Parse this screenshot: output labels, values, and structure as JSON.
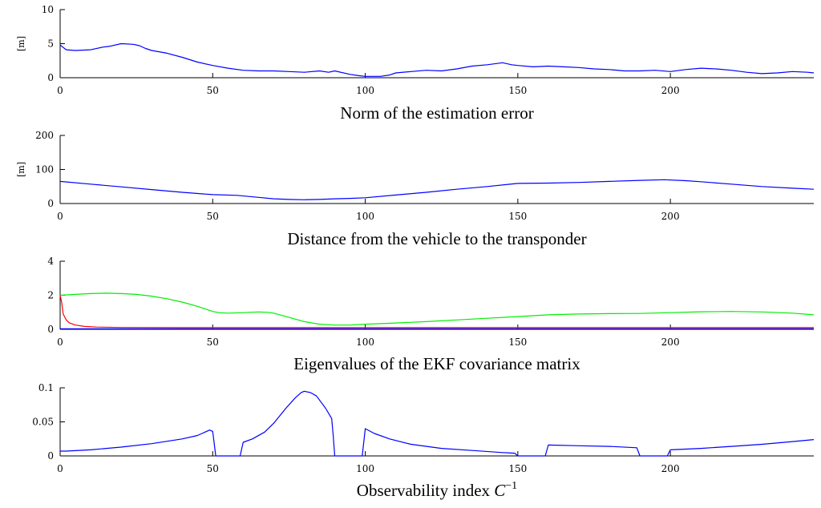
{
  "chart_data": [
    {
      "type": "line",
      "title": "Norm of the estimation error",
      "ylabel": "[m]",
      "xlim": [
        0,
        247
      ],
      "ylim": [
        0,
        10
      ],
      "xticks": [
        "0",
        "50",
        "100",
        "150",
        "200"
      ],
      "yticks": [
        "0",
        "5",
        "10"
      ],
      "series": [
        {
          "color": "#0000ff",
          "x": [
            0,
            2,
            5,
            10,
            14,
            16,
            20,
            24,
            26,
            28,
            30,
            35,
            40,
            45,
            50,
            55,
            60,
            65,
            70,
            75,
            80,
            85,
            88,
            90,
            95,
            98,
            100,
            102,
            105,
            108,
            110,
            115,
            120,
            125,
            130,
            135,
            140,
            145,
            148,
            150,
            155,
            160,
            165,
            170,
            175,
            180,
            185,
            190,
            195,
            200,
            205,
            210,
            215,
            220,
            225,
            230,
            235,
            240,
            245,
            247
          ],
          "y": [
            4.8,
            4.1,
            4.0,
            4.1,
            4.5,
            4.6,
            5.0,
            4.9,
            4.7,
            4.3,
            4.0,
            3.6,
            3.0,
            2.3,
            1.8,
            1.4,
            1.1,
            1.0,
            1.0,
            0.9,
            0.8,
            1.0,
            0.8,
            1.0,
            0.5,
            0.3,
            0.2,
            0.2,
            0.2,
            0.4,
            0.7,
            0.9,
            1.1,
            1.0,
            1.3,
            1.7,
            1.9,
            2.2,
            1.9,
            1.8,
            1.6,
            1.7,
            1.6,
            1.5,
            1.3,
            1.2,
            1.0,
            1.0,
            1.1,
            0.9,
            1.2,
            1.4,
            1.3,
            1.1,
            0.8,
            0.6,
            0.7,
            0.9,
            0.8,
            0.7
          ]
        }
      ]
    },
    {
      "type": "line",
      "title": "Distance from the vehicle to the transponder",
      "ylabel": "[m]",
      "xlim": [
        0,
        247
      ],
      "ylim": [
        0,
        200
      ],
      "xticks": [
        "0",
        "50",
        "100",
        "150",
        "200"
      ],
      "yticks": [
        "0",
        "100",
        "200"
      ],
      "series": [
        {
          "color": "#0000ff",
          "x": [
            0,
            10,
            20,
            30,
            40,
            50,
            58,
            65,
            70,
            75,
            80,
            85,
            90,
            95,
            100,
            110,
            120,
            130,
            140,
            150,
            160,
            170,
            180,
            190,
            198,
            205,
            210,
            220,
            230,
            240,
            247
          ],
          "y": [
            65,
            57,
            49,
            41,
            33,
            26,
            24,
            18,
            14,
            12,
            11,
            12,
            14,
            15,
            17,
            25,
            33,
            42,
            50,
            59,
            60,
            62,
            65,
            68,
            70,
            67,
            64,
            57,
            50,
            45,
            42
          ]
        }
      ]
    },
    {
      "type": "line",
      "title": "Eigenvalues of the EKF covariance matrix",
      "ylabel": "",
      "xlim": [
        0,
        247
      ],
      "ylim": [
        0,
        4
      ],
      "xticks": [
        "0",
        "50",
        "100",
        "150",
        "200"
      ],
      "yticks": [
        "0",
        "2",
        "4"
      ],
      "series": [
        {
          "color": "#00ee00",
          "x": [
            0,
            5,
            10,
            15,
            20,
            25,
            30,
            35,
            40,
            45,
            50,
            52,
            55,
            60,
            65,
            68,
            70,
            75,
            80,
            85,
            90,
            95,
            100,
            110,
            120,
            130,
            140,
            150,
            160,
            170,
            180,
            190,
            200,
            210,
            220,
            230,
            240,
            247
          ],
          "y": [
            2.0,
            2.05,
            2.1,
            2.12,
            2.1,
            2.05,
            1.95,
            1.8,
            1.6,
            1.35,
            1.05,
            0.98,
            0.95,
            0.98,
            1.02,
            1.0,
            0.95,
            0.7,
            0.45,
            0.3,
            0.25,
            0.25,
            0.3,
            0.37,
            0.45,
            0.55,
            0.65,
            0.75,
            0.85,
            0.9,
            0.92,
            0.93,
            0.98,
            1.03,
            1.05,
            1.02,
            0.95,
            0.85
          ]
        },
        {
          "color": "#ff0000",
          "x": [
            0,
            0.5,
            1,
            2,
            3,
            5,
            8,
            12,
            20,
            40,
            80,
            120,
            160,
            200,
            247
          ],
          "y": [
            2.0,
            1.6,
            0.9,
            0.55,
            0.38,
            0.25,
            0.17,
            0.13,
            0.11,
            0.1,
            0.1,
            0.1,
            0.1,
            0.1,
            0.1
          ]
        },
        {
          "color": "#0000ff",
          "x": [
            0,
            50,
            100,
            150,
            200,
            247
          ],
          "y": [
            0.03,
            0.03,
            0.03,
            0.03,
            0.03,
            0.03
          ]
        }
      ]
    },
    {
      "type": "line",
      "title": "Observability index",
      "title_math": "C",
      "title_sup": "−1",
      "ylabel": "",
      "xlim": [
        0,
        247
      ],
      "ylim": [
        0,
        0.1
      ],
      "xticks": [
        "0",
        "50",
        "100",
        "150",
        "200"
      ],
      "yticks": [
        "0",
        "0.05",
        "0.1"
      ],
      "series": [
        {
          "color": "#0000ff",
          "segments": [
            {
              "x": [
                0,
                2,
                10,
                20,
                30,
                40,
                45,
                49,
                50,
                51,
                59,
                60,
                63,
                67,
                70,
                74,
                77,
                79,
                80,
                82,
                84,
                87,
                89,
                89.5,
                90,
                99,
                100,
                103,
                108,
                115,
                125,
                135,
                145,
                149,
                150,
                155,
                159,
                160,
                170,
                180,
                189,
                190,
                195,
                199,
                200,
                210,
                220,
                230,
                240,
                247
              ],
              "y": [
                0.007,
                0.007,
                0.009,
                0.013,
                0.018,
                0.025,
                0.03,
                0.038,
                0.036,
                0.0,
                0.0,
                0.02,
                0.025,
                0.035,
                0.048,
                0.07,
                0.085,
                0.093,
                0.095,
                0.093,
                0.088,
                0.07,
                0.055,
                0.03,
                0.0,
                0.0,
                0.04,
                0.033,
                0.025,
                0.017,
                0.011,
                0.008,
                0.005,
                0.004,
                0.0,
                0.0,
                0.0,
                0.016,
                0.015,
                0.014,
                0.012,
                0.0,
                0.0,
                0.0,
                0.009,
                0.011,
                0.014,
                0.017,
                0.021,
                0.024
              ]
            }
          ]
        }
      ]
    }
  ]
}
